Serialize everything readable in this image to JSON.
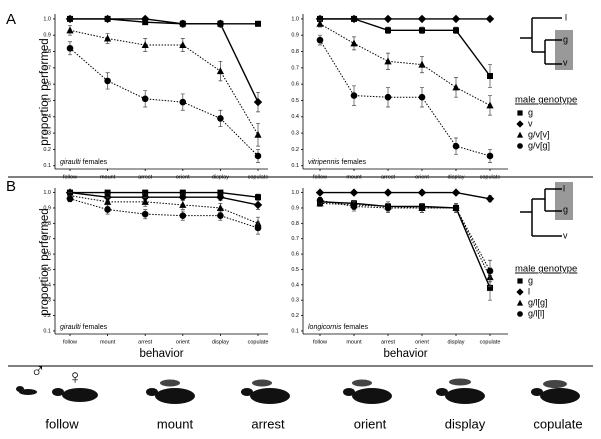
{
  "rows": [
    {
      "label": "A",
      "y_label": "proportion performed",
      "legend_title": "male genotype",
      "tree": [
        "l",
        "g",
        "v"
      ]
    },
    {
      "label": "B",
      "y_label": "proportion performed",
      "legend_title": "male genotype",
      "tree": [
        "l",
        "g",
        "v"
      ]
    }
  ],
  "behaviors": {
    "symbols": [
      "♂",
      "♀"
    ],
    "labels": [
      "follow",
      "mount",
      "arrest",
      "orient",
      "display",
      "copulate"
    ]
  },
  "chart_data": [
    {
      "type": "line",
      "title_species": "giraulti",
      "title_sex": "females",
      "categories": [
        "follow",
        "mount",
        "arrest",
        "orient",
        "display",
        "copulate"
      ],
      "ylim": [
        0.08,
        1.03
      ],
      "yticks": [
        {
          "value": 1,
          "label": "1.0"
        },
        0.9,
        0.8,
        0.7,
        0.6,
        0.5,
        0.4,
        0.3,
        0.2,
        0.1
      ],
      "series": [
        {
          "name": "g",
          "marker": "square",
          "dash": "solid",
          "color": "#000",
          "values": [
            1,
            1,
            0.98,
            0.97,
            0.97,
            0.97
          ],
          "errors": [
            0,
            0,
            0.01,
            0.01,
            0.01,
            0.01
          ]
        },
        {
          "name": "v",
          "marker": "diamond",
          "dash": "solid",
          "color": "#000",
          "values": [
            1,
            1,
            1,
            0.97,
            0.97,
            0.49
          ],
          "errors": [
            0,
            0,
            0,
            0.02,
            0.02,
            0.06
          ]
        },
        {
          "name": "g/v[v]",
          "marker": "triangle",
          "dash": "dotted",
          "color": "#000",
          "values": [
            0.93,
            0.88,
            0.84,
            0.84,
            0.68,
            0.29
          ],
          "errors": [
            0.03,
            0.03,
            0.04,
            0.04,
            0.06,
            0.07
          ]
        },
        {
          "name": "g/v[g]",
          "marker": "circle",
          "dash": "dotted",
          "color": "#000",
          "values": [
            0.82,
            0.62,
            0.51,
            0.49,
            0.39,
            0.16
          ],
          "errors": [
            0.04,
            0.05,
            0.05,
            0.05,
            0.05,
            0.04
          ]
        }
      ]
    },
    {
      "type": "line",
      "title_species": "vitripennis",
      "title_sex": "females",
      "categories": [
        "follow",
        "mount",
        "arrest",
        "orient",
        "display",
        "copulate"
      ],
      "ylim": [
        0.08,
        1.03
      ],
      "yticks": [
        {
          "value": 1,
          "label": "1.0"
        },
        0.9,
        0.8,
        0.7,
        0.6,
        0.5,
        0.4,
        0.3,
        0.2,
        0.1
      ],
      "series": [
        {
          "name": "g",
          "marker": "square",
          "dash": "solid",
          "color": "#000",
          "values": [
            1,
            1,
            0.93,
            0.93,
            0.93,
            0.65
          ],
          "errors": [
            0,
            0,
            0.02,
            0.02,
            0.02,
            0.07
          ]
        },
        {
          "name": "v",
          "marker": "diamond",
          "dash": "solid",
          "color": "#000",
          "values": [
            1,
            1,
            1,
            1,
            1,
            1
          ],
          "errors": [
            0,
            0,
            0,
            0,
            0,
            0
          ]
        },
        {
          "name": "g/v[v]",
          "marker": "triangle",
          "dash": "dotted",
          "color": "#000",
          "values": [
            0.97,
            0.85,
            0.74,
            0.72,
            0.58,
            0.47
          ],
          "errors": [
            0.02,
            0.04,
            0.05,
            0.05,
            0.06,
            0.06
          ]
        },
        {
          "name": "g/v[g]",
          "marker": "circle",
          "dash": "dotted",
          "color": "#000",
          "values": [
            0.87,
            0.53,
            0.52,
            0.52,
            0.22,
            0.16
          ],
          "errors": [
            0.03,
            0.06,
            0.06,
            0.06,
            0.05,
            0.04
          ]
        }
      ]
    },
    {
      "type": "line",
      "title_species": "giraulti",
      "title_sex": "females",
      "xlabel": "behavior",
      "categories": [
        "follow",
        "mount",
        "arrest",
        "orient",
        "display",
        "copulate"
      ],
      "ylim": [
        0.08,
        1.03
      ],
      "yticks": [
        {
          "value": 1,
          "label": "1.0"
        },
        0.9,
        0.8,
        0.7,
        0.6,
        0.5,
        0.4,
        0.3,
        0.2,
        0.1
      ],
      "series": [
        {
          "name": "g",
          "marker": "square",
          "dash": "solid",
          "color": "#000",
          "values": [
            1,
            1,
            1,
            1,
            1,
            0.97
          ],
          "errors": [
            0,
            0,
            0,
            0,
            0,
            0.02
          ]
        },
        {
          "name": "l",
          "marker": "diamond",
          "dash": "solid",
          "color": "#000",
          "values": [
            1,
            0.97,
            0.97,
            0.97,
            0.97,
            0.92
          ],
          "errors": [
            0,
            0.02,
            0.02,
            0.02,
            0.02,
            0.03
          ]
        },
        {
          "name": "g/l[g]",
          "marker": "triangle",
          "dash": "dotted",
          "color": "#000",
          "values": [
            0.98,
            0.94,
            0.94,
            0.92,
            0.9,
            0.8
          ],
          "errors": [
            0.02,
            0.03,
            0.03,
            0.03,
            0.03,
            0.04
          ]
        },
        {
          "name": "g/l[l]",
          "marker": "circle",
          "dash": "dotted",
          "color": "#000",
          "values": [
            0.96,
            0.89,
            0.86,
            0.85,
            0.85,
            0.77
          ],
          "errors": [
            0.02,
            0.03,
            0.03,
            0.03,
            0.03,
            0.04
          ]
        }
      ]
    },
    {
      "type": "line",
      "title_species": "longicornis",
      "title_sex": "females",
      "xlabel": "behavior",
      "categories": [
        "follow",
        "mount",
        "arrest",
        "orient",
        "display",
        "copulate"
      ],
      "ylim": [
        0.08,
        1.03
      ],
      "yticks": [
        {
          "value": 1,
          "label": "1.0"
        },
        0.9,
        0.8,
        0.7,
        0.6,
        0.5,
        0.4,
        0.3,
        0.2,
        0.1
      ],
      "series": [
        {
          "name": "g",
          "marker": "square",
          "dash": "solid",
          "color": "#000",
          "values": [
            0.94,
            0.93,
            0.91,
            0.91,
            0.9,
            0.38
          ],
          "errors": [
            0.02,
            0.02,
            0.02,
            0.02,
            0.02,
            0.08
          ]
        },
        {
          "name": "l",
          "marker": "diamond",
          "dash": "solid",
          "color": "#000",
          "values": [
            1,
            1,
            1,
            1,
            1,
            0.96
          ],
          "errors": [
            0,
            0,
            0,
            0,
            0,
            0.02
          ]
        },
        {
          "name": "g/l[g]",
          "marker": "triangle",
          "dash": "dotted",
          "color": "#000",
          "values": [
            0.93,
            0.92,
            0.91,
            0.9,
            0.9,
            0.45
          ],
          "errors": [
            0.02,
            0.03,
            0.03,
            0.03,
            0.03,
            0.06
          ]
        },
        {
          "name": "g/l[l]",
          "marker": "circle",
          "dash": "dotted",
          "color": "#000",
          "values": [
            0.95,
            0.91,
            0.9,
            0.9,
            0.9,
            0.49
          ],
          "errors": [
            0.02,
            0.03,
            0.03,
            0.03,
            0.03,
            0.07
          ]
        }
      ]
    }
  ]
}
